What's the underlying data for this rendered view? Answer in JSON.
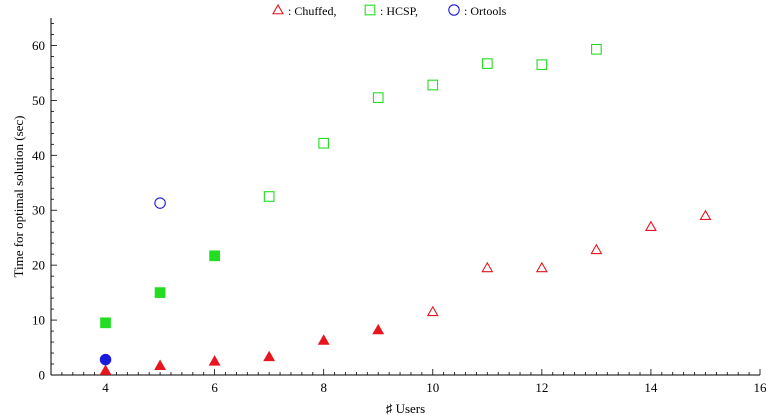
{
  "chart_data": {
    "type": "scatter",
    "xlabel": "♯ Users",
    "ylabel": "Time for optimal solution (sec)",
    "xlim": [
      3,
      16
    ],
    "ylim": [
      0,
      65
    ],
    "x_ticks": [
      4,
      6,
      8,
      10,
      12,
      14,
      16
    ],
    "y_ticks": [
      0,
      10,
      20,
      30,
      40,
      50,
      60
    ],
    "legend_position": "top-center",
    "series": [
      {
        "name": ": Chuffed,",
        "marker": "triangle",
        "color": "#e8141e",
        "points": [
          {
            "x": 4,
            "y": 0.8,
            "filled": true
          },
          {
            "x": 5,
            "y": 1.7,
            "filled": true
          },
          {
            "x": 6,
            "y": 2.5,
            "filled": true
          },
          {
            "x": 7,
            "y": 3.3,
            "filled": true
          },
          {
            "x": 8,
            "y": 6.3,
            "filled": true
          },
          {
            "x": 9,
            "y": 8.2,
            "filled": true
          },
          {
            "x": 10,
            "y": 11.5,
            "filled": false
          },
          {
            "x": 11,
            "y": 19.5,
            "filled": false
          },
          {
            "x": 12,
            "y": 19.5,
            "filled": false
          },
          {
            "x": 13,
            "y": 22.8,
            "filled": false
          },
          {
            "x": 14,
            "y": 27.0,
            "filled": false
          },
          {
            "x": 15,
            "y": 29.0,
            "filled": false
          }
        ]
      },
      {
        "name": ": HCSP,",
        "marker": "square",
        "color": "#22dd22",
        "points": [
          {
            "x": 4,
            "y": 9.5,
            "filled": true
          },
          {
            "x": 5,
            "y": 15.0,
            "filled": true
          },
          {
            "x": 6,
            "y": 21.7,
            "filled": true
          },
          {
            "x": 7,
            "y": 32.5,
            "filled": false
          },
          {
            "x": 8,
            "y": 42.2,
            "filled": false
          },
          {
            "x": 9,
            "y": 50.5,
            "filled": false
          },
          {
            "x": 10,
            "y": 52.8,
            "filled": false
          },
          {
            "x": 11,
            "y": 56.7,
            "filled": false
          },
          {
            "x": 12,
            "y": 56.5,
            "filled": false
          },
          {
            "x": 13,
            "y": 59.3,
            "filled": false
          }
        ]
      },
      {
        "name": ": Ortools",
        "marker": "circle",
        "color": "#1b1bdd",
        "points": [
          {
            "x": 4,
            "y": 2.8,
            "filled": true
          },
          {
            "x": 5,
            "y": 31.3,
            "filled": false
          }
        ]
      }
    ]
  }
}
